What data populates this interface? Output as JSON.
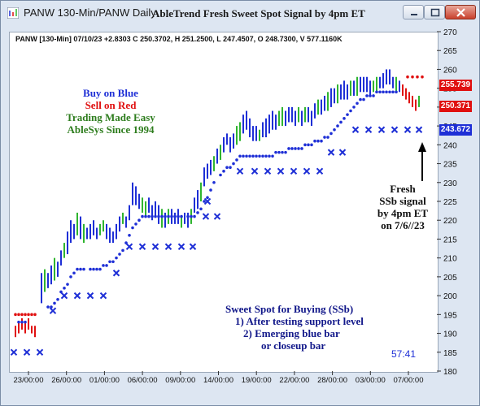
{
  "window": {
    "title": "PANW 130-Min/PANW Daily",
    "chart_title": "AbleTrend Fresh Sweet Spot Signal by 4pm ET"
  },
  "info_line": "PANW [130-Min] 07/10/23 +2.8303 C 250.3702, H 251.2500, L 247.4507, O 248.7300, V 577.1160K",
  "legend": {
    "line1": "Buy on Blue",
    "line2": "Sell on Red",
    "line3": "Trading Made Easy",
    "line4": "AbleSys Since 1994"
  },
  "annotation": {
    "l1": "Fresh",
    "l2": "SSb signal",
    "l3": "by 4pm ET",
    "l4": "on 7/6//23"
  },
  "ssb_note": {
    "title": "Sweet Spot for Buying (SSb)",
    "item1": "1) After testing support level",
    "item2": "2) Emerging blue bar",
    "item3": "or closeup bar"
  },
  "clock": "57:41",
  "price_tags": [
    {
      "label": "255.739",
      "color": "#e01010"
    },
    {
      "label": "250.371",
      "color": "#e01010"
    },
    {
      "label": "243.672",
      "color": "#1e2fd6"
    }
  ],
  "chart_data": {
    "type": "candlestick",
    "symbol": "PANW",
    "interval": "130-Min",
    "y_ticks": [
      180,
      185,
      190,
      195,
      200,
      205,
      210,
      215,
      220,
      225,
      230,
      235,
      240,
      245,
      250,
      255,
      260,
      265,
      270
    ],
    "ylim": [
      180,
      270
    ],
    "x_ticks": [
      "23/00:00",
      "26/00:00",
      "01/00:00",
      "06/00:00",
      "09/00:00",
      "14/00:00",
      "19/00:00",
      "22/00:00",
      "28/00:00",
      "03/00:00",
      "07/00:00"
    ],
    "colors": {
      "up": "#1e2fd6",
      "down": "#e01010",
      "neutral": "#2fb52f"
    }
  }
}
